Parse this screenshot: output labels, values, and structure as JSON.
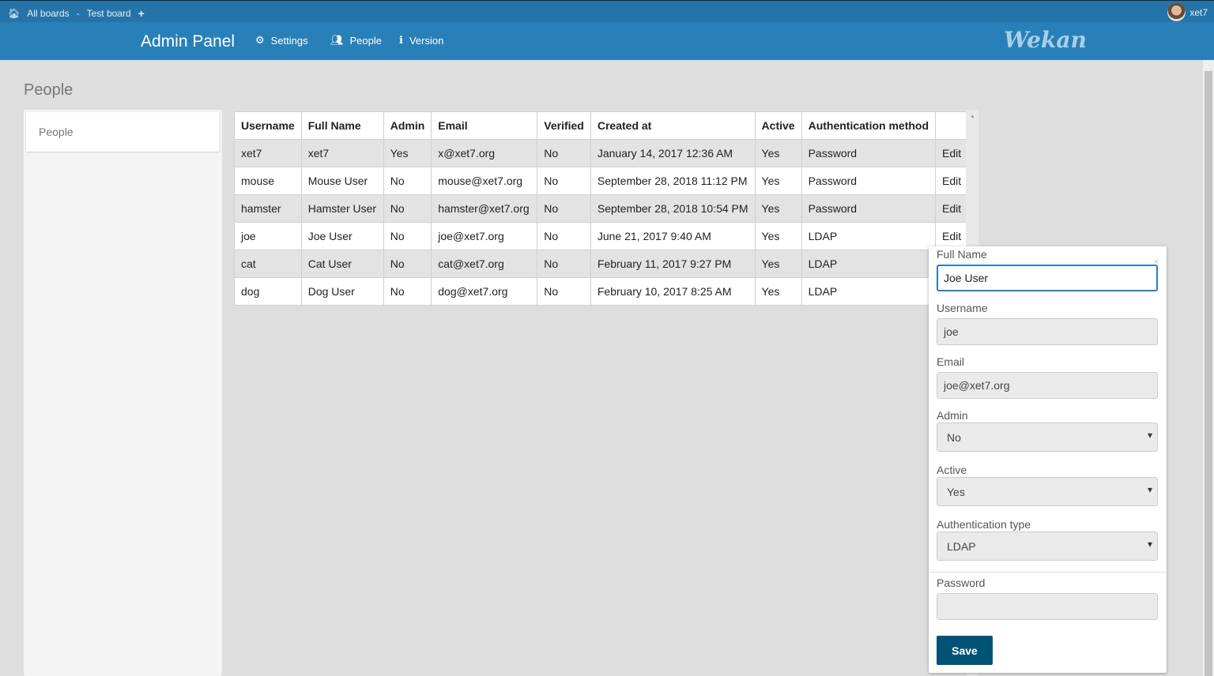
{
  "topbar": {
    "all_boards": "All boards",
    "separator": "-",
    "board": "Test board",
    "username": "xet7"
  },
  "nav": {
    "title": "Admin Panel",
    "settings": "Settings",
    "people": "People",
    "version": "Version",
    "logo": "Wekan"
  },
  "page": {
    "title": "People"
  },
  "sidebar": {
    "items": [
      {
        "label": "People"
      }
    ]
  },
  "table": {
    "headers": [
      "Username",
      "Full Name",
      "Admin",
      "Email",
      "Verified",
      "Created at",
      "Active",
      "Authentication method",
      ""
    ],
    "rows": [
      [
        "xet7",
        "xet7",
        "Yes",
        "x@xet7.org",
        "No",
        "January 14, 2017 12:36 AM",
        "Yes",
        "Password",
        "Edit"
      ],
      [
        "mouse",
        "Mouse User",
        "No",
        "mouse@xet7.org",
        "No",
        "September 28, 2018 11:12 PM",
        "Yes",
        "Password",
        "Edit"
      ],
      [
        "hamster",
        "Hamster User",
        "No",
        "hamster@xet7.org",
        "No",
        "September 28, 2018 10:54 PM",
        "Yes",
        "Password",
        "Edit"
      ],
      [
        "joe",
        "Joe User",
        "No",
        "joe@xet7.org",
        "No",
        "June 21, 2017 9:40 AM",
        "Yes",
        "LDAP",
        "Edit"
      ],
      [
        "cat",
        "Cat User",
        "No",
        "cat@xet7.org",
        "No",
        "February 11, 2017 9:27 PM",
        "Yes",
        "LDAP",
        ""
      ],
      [
        "dog",
        "Dog User",
        "No",
        "dog@xet7.org",
        "No",
        "February 10, 2017 8:25 AM",
        "Yes",
        "LDAP",
        ""
      ]
    ]
  },
  "edit_popup": {
    "fullname_label": "Full Name",
    "fullname_value": "Joe User",
    "username_label": "Username",
    "username_value": "joe",
    "email_label": "Email",
    "email_value": "joe@xet7.org",
    "admin_label": "Admin",
    "admin_value": "No",
    "active_label": "Active",
    "active_value": "Yes",
    "auth_label": "Authentication type",
    "auth_value": "LDAP",
    "password_label": "Password",
    "password_value": "",
    "save_label": "Save",
    "close": "×"
  },
  "colors": {
    "topbar": "#2574a9",
    "nav": "#2980b9",
    "save": "#005377"
  }
}
